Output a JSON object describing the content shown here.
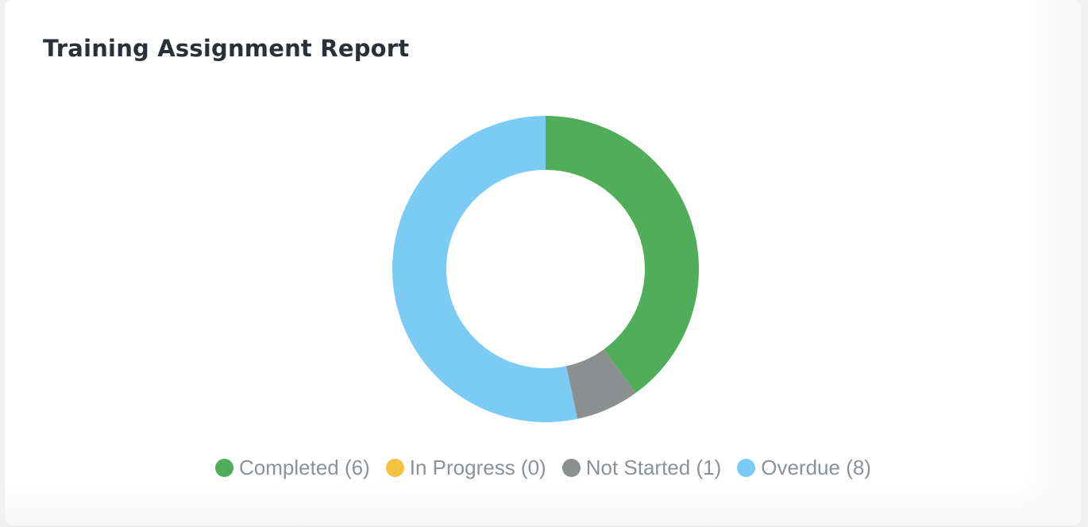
{
  "card": {
    "title": "Training Assignment Report"
  },
  "chart_data": {
    "type": "pie",
    "variant": "donut",
    "title": "Training Assignment Report",
    "legend_position": "bottom",
    "slices": [
      {
        "label": "Completed",
        "value": 6,
        "color": "#50ad5a",
        "legend": "Completed (6)"
      },
      {
        "label": "In Progress",
        "value": 0,
        "color": "#f4c142",
        "legend": "In Progress (0)"
      },
      {
        "label": "Not Started",
        "value": 1,
        "color": "#8c8f90",
        "legend": "Not Started (1)"
      },
      {
        "label": "Overdue",
        "value": 8,
        "color": "#7ccbf4",
        "legend": "Overdue (8)"
      }
    ]
  }
}
